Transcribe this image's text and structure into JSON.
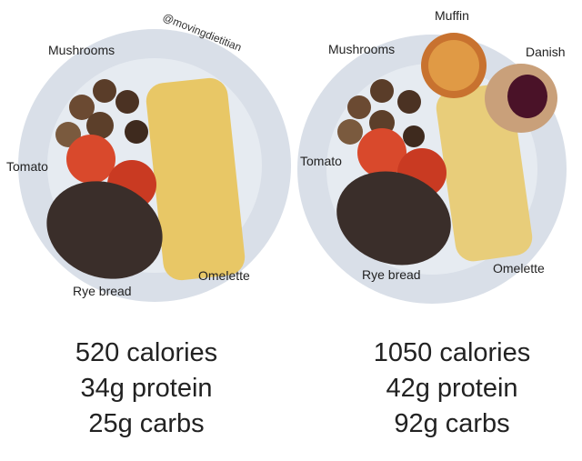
{
  "watermark": "@movingdietitian",
  "left_plate": {
    "labels": [
      "Mushrooms",
      "Tomato",
      "Rye bread",
      "Omelette"
    ],
    "stats": [
      "520 calories",
      "34g protein",
      "25g carbs"
    ]
  },
  "right_plate": {
    "labels": [
      "Muffin",
      "Mushrooms",
      "Danish",
      "Tomato",
      "Rye bread",
      "Omelette"
    ],
    "stats": [
      "1050 calories",
      "42g protein",
      "92g carbs"
    ]
  }
}
